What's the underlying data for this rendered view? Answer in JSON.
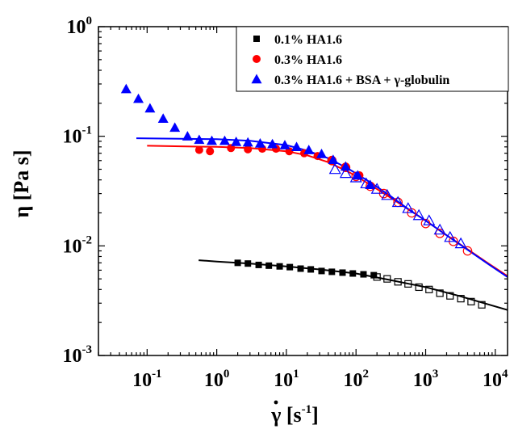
{
  "chart_data": {
    "type": "scatter",
    "x_scale": "log",
    "y_scale": "log",
    "xlim": [
      0.02,
      15000
    ],
    "ylim": [
      0.001,
      1
    ],
    "xlabel_symbol": "γ",
    "xlabel_unit": "[s",
    "xlabel_exp": "-1",
    "xlabel_close": "]",
    "ylabel": "η [Pa s]",
    "legend_position": "top-right",
    "x_ticks": [
      {
        "value": 0.1,
        "base": "10",
        "exp": "-1"
      },
      {
        "value": 1,
        "base": "10",
        "exp": "0"
      },
      {
        "value": 10,
        "base": "10",
        "exp": "1"
      },
      {
        "value": 100,
        "base": "10",
        "exp": "2"
      },
      {
        "value": 1000,
        "base": "10",
        "exp": "3"
      },
      {
        "value": 10000,
        "base": "10",
        "exp": "4"
      }
    ],
    "y_ticks": [
      {
        "value": 0.001,
        "base": "10",
        "exp": "-3"
      },
      {
        "value": 0.01,
        "base": "10",
        "exp": "-2"
      },
      {
        "value": 0.1,
        "base": "10",
        "exp": "-1"
      },
      {
        "value": 1,
        "base": "10",
        "exp": "0"
      }
    ],
    "series": [
      {
        "name": "0.1% HA1.6",
        "marker": "square",
        "color": "#000000",
        "filled": {
          "x": [
            2.0,
            2.8,
            4.0,
            5.6,
            8.0,
            11.2,
            16,
            22.4,
            32,
            45,
            64,
            90,
            128,
            180
          ],
          "y": [
            0.007,
            0.0069,
            0.0067,
            0.0066,
            0.0065,
            0.0064,
            0.0062,
            0.0061,
            0.0059,
            0.0058,
            0.0057,
            0.0056,
            0.0055,
            0.0054
          ]
        },
        "open": {
          "x": [
            200,
            280,
            400,
            560,
            800,
            1120,
            1600,
            2240,
            3200,
            4500,
            6400
          ],
          "y": [
            0.0052,
            0.005,
            0.0047,
            0.0045,
            0.0042,
            0.004,
            0.0037,
            0.0035,
            0.0033,
            0.0031,
            0.0029
          ]
        },
        "fit": {
          "x": [
            0.55,
            1,
            3,
            10,
            30,
            100,
            300,
            1000,
            3000,
            15000
          ],
          "y": [
            0.0074,
            0.0072,
            0.0069,
            0.0065,
            0.0061,
            0.0056,
            0.0049,
            0.0042,
            0.0035,
            0.0026
          ]
        }
      },
      {
        "name": "0.3% HA1.6",
        "marker": "circle",
        "color": "#ff0000",
        "filled": {
          "x": [
            0.56,
            0.8,
            1.6,
            2.8,
            4.5,
            7.1,
            11,
            18,
            28,
            45,
            71,
            112
          ],
          "y": [
            0.075,
            0.073,
            0.078,
            0.076,
            0.077,
            0.077,
            0.073,
            0.07,
            0.066,
            0.061,
            0.053,
            0.044
          ]
        },
        "open": {
          "x": [
            45,
            71,
            100,
            160,
            250,
            400,
            630,
            1000,
            1600,
            2500,
            4000
          ],
          "y": [
            0.06,
            0.052,
            0.043,
            0.035,
            0.03,
            0.025,
            0.02,
            0.016,
            0.013,
            0.011,
            0.009
          ]
        },
        "fit": {
          "x": [
            0.1,
            0.3,
            1,
            3,
            10,
            20,
            40,
            80,
            150,
            300,
            600,
            1000,
            2000,
            4000,
            8000,
            15000
          ],
          "y": [
            0.082,
            0.081,
            0.08,
            0.078,
            0.073,
            0.067,
            0.058,
            0.047,
            0.037,
            0.028,
            0.021,
            0.017,
            0.0125,
            0.0093,
            0.0069,
            0.0053
          ]
        }
      },
      {
        "name": "0.3% HA1.6 + BSA + γ-globulin",
        "marker": "triangle",
        "color": "#0000ff",
        "filled": {
          "x": [
            0.05,
            0.075,
            0.11,
            0.17,
            0.25,
            0.38,
            0.56,
            0.85,
            1.3,
            1.9,
            2.8,
            4.2,
            6.3,
            9.5,
            14,
            21,
            32,
            47,
            71,
            106,
            160
          ],
          "y": [
            0.27,
            0.22,
            0.18,
            0.145,
            0.12,
            0.1,
            0.093,
            0.091,
            0.091,
            0.089,
            0.088,
            0.086,
            0.085,
            0.083,
            0.08,
            0.075,
            0.069,
            0.061,
            0.053,
            0.044,
            0.036
          ]
        },
        "open": {
          "x": [
            50,
            71,
            100,
            140,
            200,
            280,
            400,
            560,
            800,
            1120,
            1600,
            2240,
            3200
          ],
          "y": [
            0.05,
            0.046,
            0.042,
            0.037,
            0.033,
            0.029,
            0.025,
            0.022,
            0.019,
            0.017,
            0.014,
            0.012,
            0.0105
          ]
        },
        "fit": {
          "x": [
            0.07,
            0.3,
            1,
            3,
            10,
            20,
            40,
            80,
            150,
            300,
            600,
            1000,
            2000,
            4000,
            8000,
            15000
          ],
          "y": [
            0.096,
            0.095,
            0.094,
            0.091,
            0.083,
            0.074,
            0.063,
            0.05,
            0.039,
            0.029,
            0.021,
            0.017,
            0.0125,
            0.0092,
            0.0068,
            0.0052
          ]
        }
      }
    ]
  }
}
